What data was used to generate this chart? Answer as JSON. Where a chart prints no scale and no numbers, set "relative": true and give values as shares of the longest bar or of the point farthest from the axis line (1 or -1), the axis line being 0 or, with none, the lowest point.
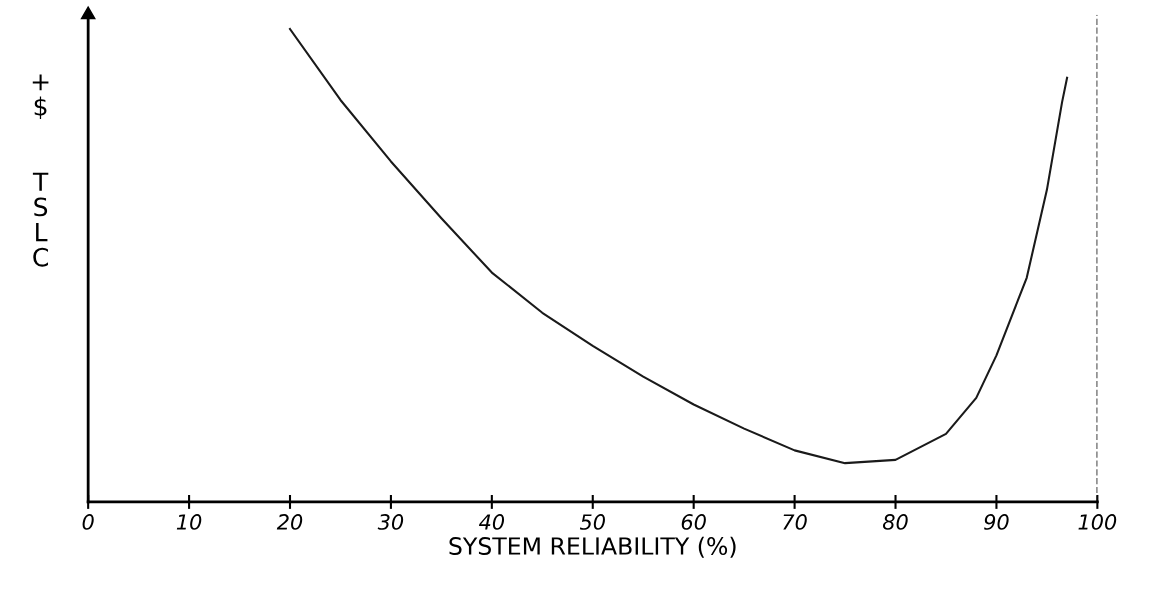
{
  "chart_data": {
    "type": "line",
    "relative": true,
    "xlabel": "SYSTEM RELIABILITY (%)",
    "ylabel": "+ $ TSLC",
    "xlim": [
      0,
      100
    ],
    "xticks": [
      0,
      10,
      20,
      30,
      40,
      50,
      60,
      70,
      80,
      90,
      100
    ],
    "series": [
      {
        "color": "#1a1a1a",
        "x": [
          20,
          25,
          30,
          35,
          40,
          45,
          50,
          55,
          60,
          65,
          70,
          75,
          80,
          85,
          88,
          90,
          93,
          95,
          96.5,
          97
        ],
        "values": [
          1.0,
          0.85,
          0.72,
          0.6,
          0.485,
          0.4,
          0.33,
          0.265,
          0.206,
          0.155,
          0.109,
          0.082,
          0.089,
          0.144,
          0.22,
          0.31,
          0.474,
          0.66,
          0.845,
          0.897
        ]
      }
    ],
    "ref_lines": [
      {
        "axis": "x",
        "value": 100,
        "color": "#1a1a1a",
        "line_style": "dashed"
      }
    ],
    "grid": false,
    "legend": false,
    "marker": "none",
    "line_style": "solid"
  }
}
